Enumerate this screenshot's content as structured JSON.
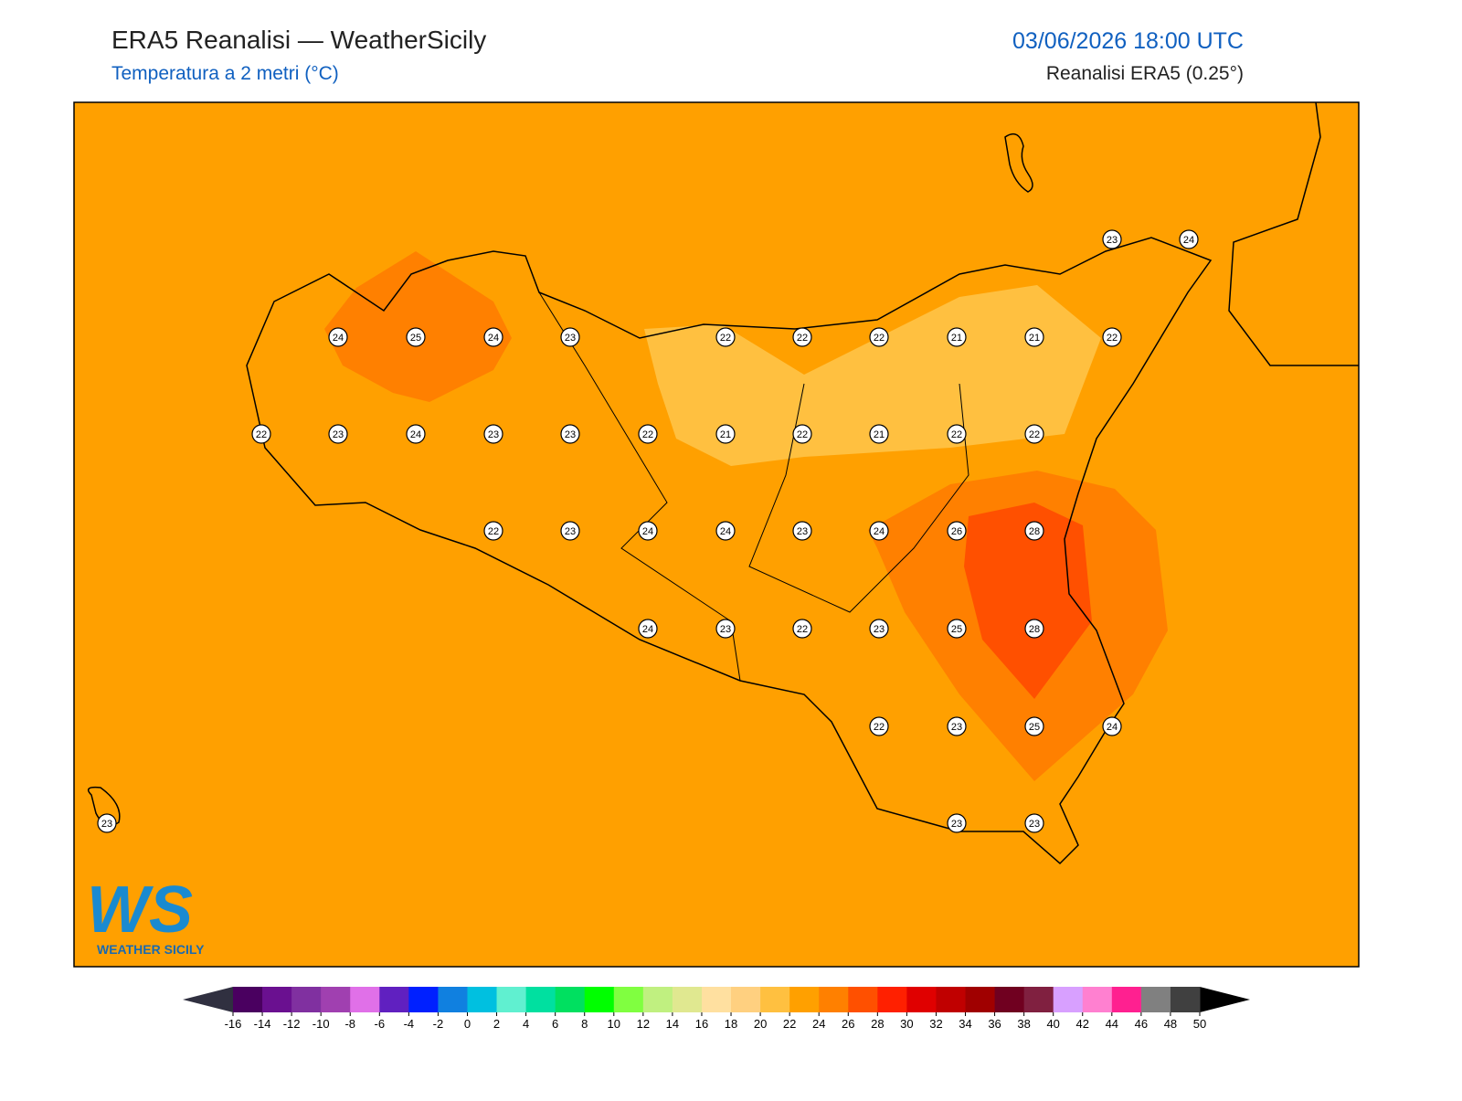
{
  "header": {
    "title": "ERA5 Reanalisi — WeatherSicily",
    "subtitle": "Temperatura a 2 metri (°C)",
    "datetime": "03/06/2026 18:00 UTC",
    "source": "Reanalisi ERA5 (0.25°)"
  },
  "map": {
    "background_color": "#ffa000",
    "station_values": [
      23,
      24,
      24,
      25,
      24,
      23,
      22,
      22,
      22,
      21,
      21,
      22,
      22,
      23,
      24,
      23,
      23,
      22,
      21,
      22,
      21,
      22,
      22,
      22,
      23,
      24,
      24,
      23,
      24,
      26,
      28,
      24,
      23,
      22,
      23,
      25,
      28,
      22,
      23,
      25,
      24,
      23,
      23,
      23
    ]
  },
  "logo": {
    "initials": "WS",
    "name": "WEATHER SICILY"
  },
  "colorbar": {
    "ticks": [
      -16,
      -14,
      -12,
      -10,
      -8,
      -6,
      -4,
      -2,
      0,
      2,
      4,
      6,
      8,
      10,
      12,
      14,
      16,
      18,
      20,
      22,
      24,
      26,
      28,
      30,
      32,
      34,
      36,
      38,
      40,
      42,
      44,
      46,
      48,
      50
    ],
    "colors": [
      "#4a0060",
      "#6a1090",
      "#8030a0",
      "#a040b0",
      "#e070e8",
      "#6020c0",
      "#0020ff",
      "#1080e0",
      "#00c0e0",
      "#60f0d0",
      "#00e0a0",
      "#00e060",
      "#00ff00",
      "#80ff40",
      "#c0f080",
      "#e0e890",
      "#ffe0a0",
      "#ffd080",
      "#ffc040",
      "#ffa000",
      "#ff8000",
      "#ff5000",
      "#ff2000",
      "#e00000",
      "#c00000",
      "#a00000",
      "#700020",
      "#802040",
      "#d8a0ff",
      "#ff80d0",
      "#ff2090",
      "#808080",
      "#404040"
    ],
    "under_color": "#303040",
    "over_color": "#000000"
  }
}
